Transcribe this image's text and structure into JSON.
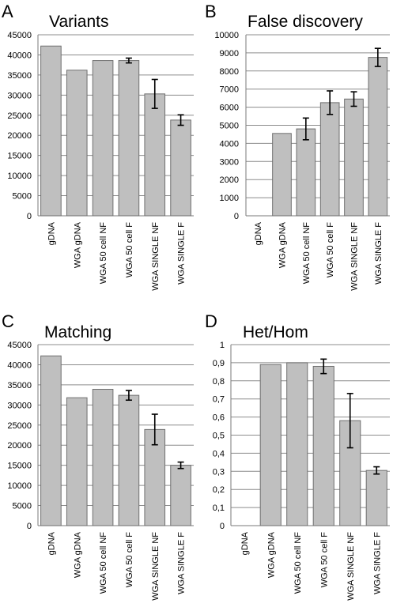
{
  "chart_data": [
    {
      "panel": "A",
      "type": "bar",
      "title": "Variants",
      "categories": [
        "gDNA",
        "WGA gDNA",
        "WGA 50 cell NF",
        "WGA 50 cell F",
        "WGA SINGLE NF",
        "WGA SINGLE F"
      ],
      "values": [
        42200,
        36200,
        38600,
        38600,
        30300,
        23800
      ],
      "errors": [
        null,
        null,
        null,
        600,
        3600,
        1300
      ],
      "ylim": [
        0,
        45000
      ],
      "yticks": [
        0,
        5000,
        10000,
        15000,
        20000,
        25000,
        30000,
        35000,
        40000,
        45000
      ],
      "grid": true,
      "bar_color": "#bfbfbf"
    },
    {
      "panel": "B",
      "type": "bar",
      "title": "False discovery",
      "categories": [
        "gDNA",
        "WGA gDNA",
        "WGA 50 cell NF",
        "WGA 50 cell F",
        "WGA SINGLE NF",
        "WGA SINGLE F"
      ],
      "values": [
        0,
        4550,
        4800,
        6250,
        6450,
        8750
      ],
      "errors": [
        null,
        null,
        600,
        650,
        400,
        500
      ],
      "ylim": [
        0,
        10000
      ],
      "yticks": [
        0,
        1000,
        2000,
        3000,
        4000,
        5000,
        6000,
        7000,
        8000,
        9000,
        10000
      ],
      "grid": true,
      "bar_color": "#bfbfbf"
    },
    {
      "panel": "C",
      "type": "bar",
      "title": "Matching",
      "categories": [
        "gDNA",
        "WGA gDNA",
        "WGA 50 cell NF",
        "WGA 50 cell F",
        "WGA SINGLE NF",
        "WGA SINGLE F"
      ],
      "values": [
        42200,
        31800,
        33900,
        32400,
        23900,
        15000
      ],
      "errors": [
        null,
        null,
        null,
        1200,
        3800,
        800
      ],
      "ylim": [
        0,
        45000
      ],
      "yticks": [
        0,
        5000,
        10000,
        15000,
        20000,
        25000,
        30000,
        35000,
        40000,
        45000
      ],
      "grid": true,
      "bar_color": "#bfbfbf"
    },
    {
      "panel": "D",
      "type": "bar",
      "title": "Het/Hom",
      "categories": [
        "gDNA",
        "WGA gDNA",
        "WGA 50 cell NF",
        "WGA 50 cell F",
        "WGA SINGLE NF",
        "WGA SINGLE F"
      ],
      "values": [
        0,
        0.89,
        0.9,
        0.88,
        0.58,
        0.305
      ],
      "errors": [
        null,
        null,
        null,
        0.04,
        0.15,
        0.02
      ],
      "ylim": [
        0,
        1
      ],
      "yticks": [
        "0",
        "0,1",
        "0,2",
        "0,3",
        "0,4",
        "0,5",
        "0,6",
        "0,7",
        "0,8",
        "0,9",
        "1"
      ],
      "grid": true,
      "bar_color": "#bfbfbf"
    }
  ]
}
